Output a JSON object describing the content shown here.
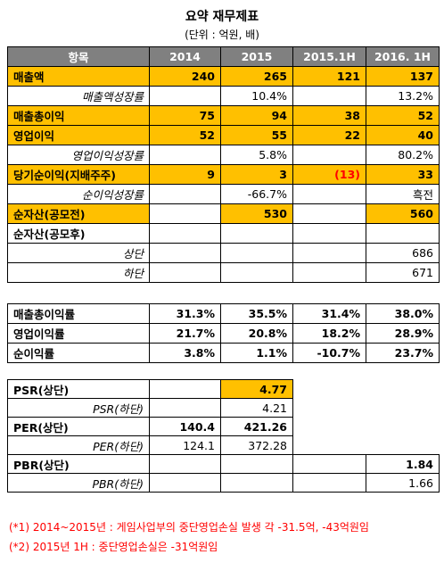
{
  "title": "요약 재무제표",
  "unit": "(단위 : 억원, 배)",
  "headers": [
    "항목",
    "2014",
    "2015",
    "2015.1H",
    "2016. 1H"
  ],
  "main_rows": [
    {
      "label": "매출액",
      "type": "lbl",
      "values": [
        "240",
        "265",
        "121",
        "137"
      ]
    },
    {
      "label": "매출액성장률",
      "type": "sub",
      "values": [
        "",
        "10.4%",
        "",
        "13.2%"
      ]
    },
    {
      "label": "매출총이익",
      "type": "lbl",
      "values": [
        "75",
        "94",
        "38",
        "52"
      ]
    },
    {
      "label": "영업이익",
      "type": "lbl",
      "values": [
        "52",
        "55",
        "22",
        "40"
      ]
    },
    {
      "label": "영업이익성장률",
      "type": "sub",
      "values": [
        "",
        "5.8%",
        "",
        "80.2%"
      ]
    },
    {
      "label": "당기순이익(지배주주)",
      "type": "lbl",
      "values": [
        "9",
        "3",
        "(13)",
        "33"
      ]
    },
    {
      "label": "순이익성장률",
      "type": "sub",
      "values": [
        "",
        "-66.7%",
        "",
        "흑전"
      ]
    },
    {
      "label": "순자산(공모전)",
      "type": "lbl",
      "values": [
        "",
        "530",
        "",
        "560"
      ]
    },
    {
      "label": "순자산(공모후)",
      "type": "lbl",
      "values": [
        "",
        "",
        "",
        ""
      ]
    },
    {
      "label": "상단",
      "type": "sub",
      "values": [
        "",
        "",
        "",
        "686"
      ]
    },
    {
      "label": "하단",
      "type": "sub",
      "values": [
        "",
        "",
        "",
        "671"
      ]
    }
  ],
  "margin_rows": [
    {
      "label": "매출총이익률",
      "values": [
        "31.3%",
        "35.5%",
        "31.4%",
        "38.0%"
      ]
    },
    {
      "label": "영업이익률",
      "values": [
        "21.7%",
        "20.8%",
        "18.2%",
        "28.9%"
      ]
    },
    {
      "label": "순이익률",
      "values": [
        "3.8%",
        "1.1%",
        "-10.7%",
        "23.7%"
      ]
    }
  ],
  "valuation_rows": [
    {
      "label": "PSR(상단)",
      "type": "lbl",
      "values": [
        "",
        "4.77",
        "",
        ""
      ]
    },
    {
      "label": "PSR(하단)",
      "type": "sub",
      "values": [
        "",
        "4.21",
        "",
        ""
      ]
    },
    {
      "label": "PER(상단)",
      "type": "lbl",
      "values": [
        "140.4",
        "421.26",
        "",
        ""
      ]
    },
    {
      "label": "PER(하단)",
      "type": "sub",
      "values": [
        "124.1",
        "372.28",
        "",
        ""
      ]
    },
    {
      "label": "PBR(상단)",
      "type": "lbl",
      "values": [
        "",
        "",
        "",
        "1.84"
      ]
    },
    {
      "label": "PBR(하단)",
      "type": "sub",
      "values": [
        "",
        "",
        "",
        "1.66"
      ]
    }
  ],
  "highlight_color": "#ffc000",
  "header_color": "#808080",
  "negative_color": "#ff0000",
  "notes": {
    "note1": "(*1) 2014~2015년 : 게임사업부의 중단영업손실 발생 각 -31.5억, -43억원임",
    "note2": "(*2) 2015년 1H : 중단영업손실은 -31억원임"
  }
}
